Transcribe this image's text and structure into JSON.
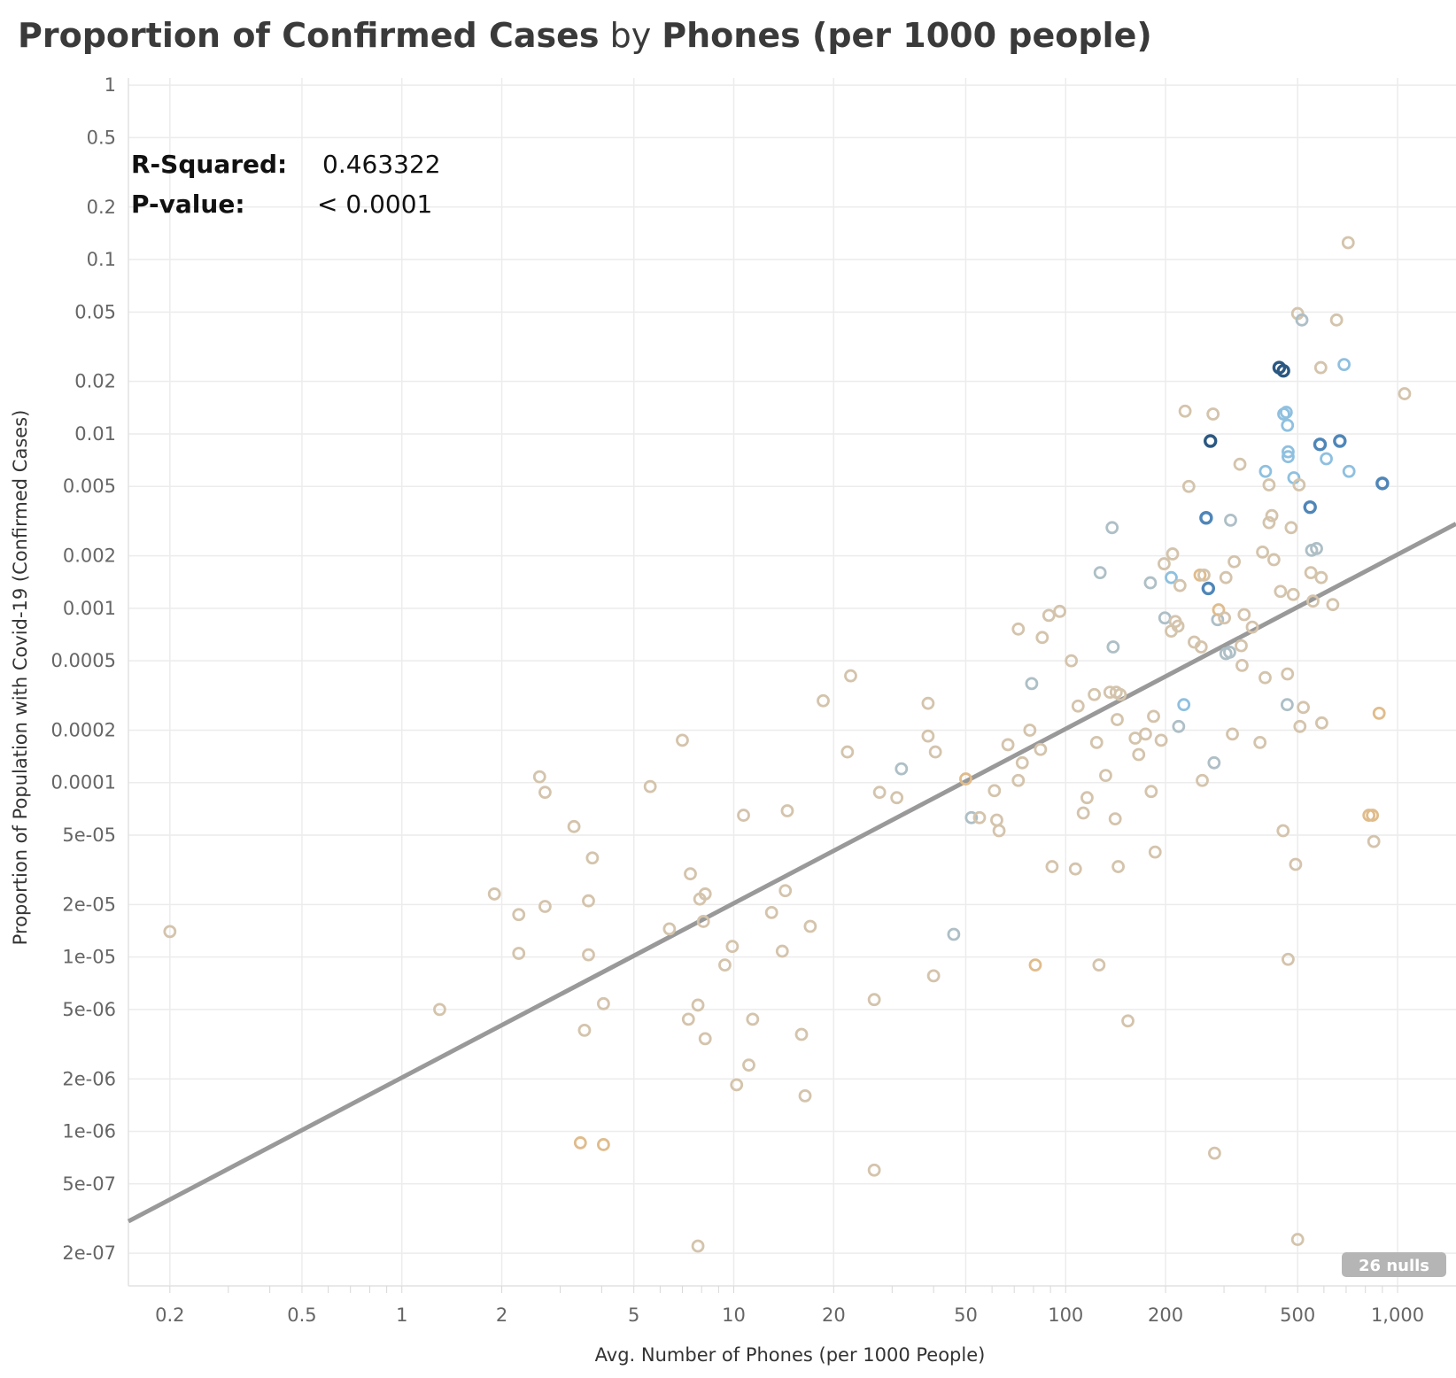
{
  "title": {
    "part1": "Proportion of Confirmed Cases",
    "part2": "by",
    "part3": "Phones (per 1000 people)"
  },
  "stats": {
    "r_squared_label": "R-Squared:",
    "r_squared_value": "0.463322",
    "p_value_label": "P-value:",
    "p_value_value": "< 0.0001"
  },
  "nulls_label": "26 nulls",
  "colors": {
    "trend": "#999999",
    "grid": "#ececec",
    "tan": "#d4c4ac",
    "orange": "#e0bc8c",
    "greyblue": "#aebfc6",
    "lightblue": "#8fc0e0",
    "midblue": "#4f86b8",
    "darkblue": "#2b5882"
  },
  "chart_data": {
    "type": "scatter",
    "xlabel": "Avg. Number of Phones (per 1000 People)",
    "ylabel": "Proportion of Population with Covid-19 (Confirmed Cases)",
    "xscale": "log",
    "yscale": "log",
    "xlim": [
      0.15,
      1500
    ],
    "ylim": [
      1.3e-07,
      1.1
    ],
    "x_ticks": [
      {
        "v": 0.2,
        "label": "0.2"
      },
      {
        "v": 0.5,
        "label": "0.5"
      },
      {
        "v": 1,
        "label": "1"
      },
      {
        "v": 2,
        "label": "2"
      },
      {
        "v": 5,
        "label": "5"
      },
      {
        "v": 10,
        "label": "10"
      },
      {
        "v": 20,
        "label": "20"
      },
      {
        "v": 50,
        "label": "50"
      },
      {
        "v": 100,
        "label": "100"
      },
      {
        "v": 200,
        "label": "200"
      },
      {
        "v": 500,
        "label": "500"
      },
      {
        "v": 1000,
        "label": "1,000"
      }
    ],
    "y_ticks": [
      {
        "v": 1,
        "label": "1"
      },
      {
        "v": 0.5,
        "label": "0.5"
      },
      {
        "v": 0.2,
        "label": "0.2"
      },
      {
        "v": 0.1,
        "label": "0.1"
      },
      {
        "v": 0.05,
        "label": "0.05"
      },
      {
        "v": 0.02,
        "label": "0.02"
      },
      {
        "v": 0.01,
        "label": "0.01"
      },
      {
        "v": 0.005,
        "label": "0.005"
      },
      {
        "v": 0.002,
        "label": "0.002"
      },
      {
        "v": 0.001,
        "label": "0.001"
      },
      {
        "v": 0.0005,
        "label": "0.0005"
      },
      {
        "v": 0.0002,
        "label": "0.0002"
      },
      {
        "v": 0.0001,
        "label": "0.0001"
      },
      {
        "v": 5e-05,
        "label": "5e-05"
      },
      {
        "v": 2e-05,
        "label": "2e-05"
      },
      {
        "v": 1e-05,
        "label": "1e-05"
      },
      {
        "v": 5e-06,
        "label": "5e-06"
      },
      {
        "v": 2e-06,
        "label": "2e-06"
      },
      {
        "v": 1e-06,
        "label": "1e-06"
      },
      {
        "v": 5e-07,
        "label": "5e-07"
      },
      {
        "v": 2e-07,
        "label": "2e-07"
      }
    ],
    "grid": true,
    "trend_line": {
      "x": [
        0.15,
        1500
      ],
      "y": [
        3.05e-07,
        0.00305
      ]
    },
    "points": [
      {
        "x": 0.2,
        "y": 1.4e-05,
        "c": "tan"
      },
      {
        "x": 1.3,
        "y": 5e-06,
        "c": "tan"
      },
      {
        "x": 1.9,
        "y": 2.3e-05,
        "c": "tan"
      },
      {
        "x": 2.25,
        "y": 1.75e-05,
        "c": "tan"
      },
      {
        "x": 2.25,
        "y": 1.05e-05,
        "c": "tan"
      },
      {
        "x": 2.6,
        "y": 0.000108,
        "c": "tan"
      },
      {
        "x": 2.7,
        "y": 8.8e-05,
        "c": "tan"
      },
      {
        "x": 2.7,
        "y": 1.95e-05,
        "c": "tan"
      },
      {
        "x": 3.3,
        "y": 5.6e-05,
        "c": "tan"
      },
      {
        "x": 3.45,
        "y": 8.6e-07,
        "c": "orange"
      },
      {
        "x": 3.55,
        "y": 3.8e-06,
        "c": "tan"
      },
      {
        "x": 3.65,
        "y": 2.1e-05,
        "c": "tan"
      },
      {
        "x": 3.65,
        "y": 1.03e-05,
        "c": "tan"
      },
      {
        "x": 3.75,
        "y": 3.7e-05,
        "c": "tan"
      },
      {
        "x": 4.05,
        "y": 5.4e-06,
        "c": "tan"
      },
      {
        "x": 4.05,
        "y": 8.4e-07,
        "c": "orange"
      },
      {
        "x": 5.6,
        "y": 9.5e-05,
        "c": "tan"
      },
      {
        "x": 6.4,
        "y": 1.45e-05,
        "c": "tan"
      },
      {
        "x": 7.0,
        "y": 0.000175,
        "c": "tan"
      },
      {
        "x": 7.3,
        "y": 4.4e-06,
        "c": "tan"
      },
      {
        "x": 7.4,
        "y": 3e-05,
        "c": "tan"
      },
      {
        "x": 7.8,
        "y": 5.3e-06,
        "c": "tan"
      },
      {
        "x": 7.8,
        "y": 2.2e-07,
        "c": "tan"
      },
      {
        "x": 7.9,
        "y": 2.15e-05,
        "c": "tan"
      },
      {
        "x": 8.1,
        "y": 1.6e-05,
        "c": "tan"
      },
      {
        "x": 8.2,
        "y": 2.3e-05,
        "c": "tan"
      },
      {
        "x": 8.2,
        "y": 3.4e-06,
        "c": "tan"
      },
      {
        "x": 9.4,
        "y": 9e-06,
        "c": "tan"
      },
      {
        "x": 9.9,
        "y": 1.15e-05,
        "c": "tan"
      },
      {
        "x": 10.2,
        "y": 1.85e-06,
        "c": "tan"
      },
      {
        "x": 10.7,
        "y": 6.5e-05,
        "c": "tan"
      },
      {
        "x": 11.1,
        "y": 2.4e-06,
        "c": "tan"
      },
      {
        "x": 11.4,
        "y": 4.4e-06,
        "c": "tan"
      },
      {
        "x": 13.0,
        "y": 1.8e-05,
        "c": "tan"
      },
      {
        "x": 14.0,
        "y": 1.08e-05,
        "c": "tan"
      },
      {
        "x": 14.3,
        "y": 2.4e-05,
        "c": "tan"
      },
      {
        "x": 14.5,
        "y": 6.9e-05,
        "c": "tan"
      },
      {
        "x": 16.0,
        "y": 3.6e-06,
        "c": "tan"
      },
      {
        "x": 16.4,
        "y": 1.6e-06,
        "c": "tan"
      },
      {
        "x": 17.0,
        "y": 1.5e-05,
        "c": "tan"
      },
      {
        "x": 18.6,
        "y": 0.000295,
        "c": "tan"
      },
      {
        "x": 22.0,
        "y": 0.00015,
        "c": "tan"
      },
      {
        "x": 22.5,
        "y": 0.00041,
        "c": "tan"
      },
      {
        "x": 26.5,
        "y": 5.7e-06,
        "c": "tan"
      },
      {
        "x": 26.5,
        "y": 6e-07,
        "c": "tan"
      },
      {
        "x": 27.5,
        "y": 8.8e-05,
        "c": "tan"
      },
      {
        "x": 31,
        "y": 8.2e-05,
        "c": "tan"
      },
      {
        "x": 32,
        "y": 0.00012,
        "c": "greyblue"
      },
      {
        "x": 38.5,
        "y": 0.000285,
        "c": "tan"
      },
      {
        "x": 38.5,
        "y": 0.000185,
        "c": "tan"
      },
      {
        "x": 40,
        "y": 7.8e-06,
        "c": "tan"
      },
      {
        "x": 40.5,
        "y": 0.00015,
        "c": "tan"
      },
      {
        "x": 46,
        "y": 1.35e-05,
        "c": "greyblue"
      },
      {
        "x": 50,
        "y": 0.000105,
        "c": "orange"
      },
      {
        "x": 52,
        "y": 6.3e-05,
        "c": "greyblue"
      },
      {
        "x": 55,
        "y": 6.3e-05,
        "c": "tan"
      },
      {
        "x": 61,
        "y": 9e-05,
        "c": "tan"
      },
      {
        "x": 62,
        "y": 6.1e-05,
        "c": "tan"
      },
      {
        "x": 63,
        "y": 5.3e-05,
        "c": "tan"
      },
      {
        "x": 67,
        "y": 0.000165,
        "c": "tan"
      },
      {
        "x": 72,
        "y": 0.00076,
        "c": "tan"
      },
      {
        "x": 72,
        "y": 0.000103,
        "c": "tan"
      },
      {
        "x": 74,
        "y": 0.00013,
        "c": "tan"
      },
      {
        "x": 78,
        "y": 0.0002,
        "c": "tan"
      },
      {
        "x": 79,
        "y": 0.00037,
        "c": "greyblue"
      },
      {
        "x": 81,
        "y": 9e-06,
        "c": "orange"
      },
      {
        "x": 84,
        "y": 0.000155,
        "c": "tan"
      },
      {
        "x": 85,
        "y": 0.00068,
        "c": "tan"
      },
      {
        "x": 89,
        "y": 0.00091,
        "c": "tan"
      },
      {
        "x": 91,
        "y": 3.3e-05,
        "c": "tan"
      },
      {
        "x": 96,
        "y": 0.00096,
        "c": "tan"
      },
      {
        "x": 104,
        "y": 0.0005,
        "c": "tan"
      },
      {
        "x": 107,
        "y": 3.2e-05,
        "c": "tan"
      },
      {
        "x": 109,
        "y": 0.000275,
        "c": "tan"
      },
      {
        "x": 113,
        "y": 6.7e-05,
        "c": "tan"
      },
      {
        "x": 116,
        "y": 8.2e-05,
        "c": "tan"
      },
      {
        "x": 122,
        "y": 0.00032,
        "c": "tan"
      },
      {
        "x": 124,
        "y": 0.00017,
        "c": "tan"
      },
      {
        "x": 126,
        "y": 9e-06,
        "c": "tan"
      },
      {
        "x": 127,
        "y": 0.0016,
        "c": "greyblue"
      },
      {
        "x": 132,
        "y": 0.00011,
        "c": "tan"
      },
      {
        "x": 136,
        "y": 0.00033,
        "c": "tan"
      },
      {
        "x": 138,
        "y": 0.0029,
        "c": "greyblue"
      },
      {
        "x": 139,
        "y": 0.0006,
        "c": "greyblue"
      },
      {
        "x": 141,
        "y": 6.2e-05,
        "c": "tan"
      },
      {
        "x": 142,
        "y": 0.00033,
        "c": "tan"
      },
      {
        "x": 144,
        "y": 3.3e-05,
        "c": "tan"
      },
      {
        "x": 146,
        "y": 0.00032,
        "c": "tan"
      },
      {
        "x": 143,
        "y": 0.00023,
        "c": "tan"
      },
      {
        "x": 154,
        "y": 4.3e-06,
        "c": "tan"
      },
      {
        "x": 162,
        "y": 0.00018,
        "c": "tan"
      },
      {
        "x": 166,
        "y": 0.000145,
        "c": "tan"
      },
      {
        "x": 174,
        "y": 0.00019,
        "c": "tan"
      },
      {
        "x": 180,
        "y": 0.0014,
        "c": "greyblue"
      },
      {
        "x": 181,
        "y": 8.9e-05,
        "c": "tan"
      },
      {
        "x": 184,
        "y": 0.00024,
        "c": "tan"
      },
      {
        "x": 186,
        "y": 4e-05,
        "c": "tan"
      },
      {
        "x": 194,
        "y": 0.000175,
        "c": "tan"
      },
      {
        "x": 198,
        "y": 0.0018,
        "c": "tan"
      },
      {
        "x": 199,
        "y": 0.00088,
        "c": "greyblue"
      },
      {
        "x": 208,
        "y": 0.0015,
        "c": "lightblue"
      },
      {
        "x": 208,
        "y": 0.00074,
        "c": "tan"
      },
      {
        "x": 210,
        "y": 0.00205,
        "c": "tan"
      },
      {
        "x": 214,
        "y": 0.00084,
        "c": "tan"
      },
      {
        "x": 218,
        "y": 0.00079,
        "c": "tan"
      },
      {
        "x": 219,
        "y": 0.00021,
        "c": "greyblue"
      },
      {
        "x": 221,
        "y": 0.00135,
        "c": "tan"
      },
      {
        "x": 227,
        "y": 0.00028,
        "c": "lightblue"
      },
      {
        "x": 229,
        "y": 0.0135,
        "c": "tan"
      },
      {
        "x": 235,
        "y": 0.005,
        "c": "tan"
      },
      {
        "x": 244,
        "y": 0.00064,
        "c": "tan"
      },
      {
        "x": 254,
        "y": 0.00155,
        "c": "orange"
      },
      {
        "x": 256,
        "y": 0.0006,
        "c": "tan"
      },
      {
        "x": 258,
        "y": 0.000103,
        "c": "tan"
      },
      {
        "x": 261,
        "y": 0.00155,
        "c": "tan"
      },
      {
        "x": 265,
        "y": 0.0033,
        "c": "midblue"
      },
      {
        "x": 269,
        "y": 0.0013,
        "c": "midblue"
      },
      {
        "x": 273,
        "y": 0.0091,
        "c": "darkblue"
      },
      {
        "x": 278,
        "y": 0.013,
        "c": "tan"
      },
      {
        "x": 280,
        "y": 0.00013,
        "c": "greyblue"
      },
      {
        "x": 281,
        "y": 7.5e-07,
        "c": "tan"
      },
      {
        "x": 287,
        "y": 0.00086,
        "c": "greyblue"
      },
      {
        "x": 289,
        "y": 0.00098,
        "c": "orange"
      },
      {
        "x": 301,
        "y": 0.00088,
        "c": "tan"
      },
      {
        "x": 304,
        "y": 0.0015,
        "c": "tan"
      },
      {
        "x": 304,
        "y": 0.00055,
        "c": "greyblue"
      },
      {
        "x": 312,
        "y": 0.00056,
        "c": "greyblue"
      },
      {
        "x": 314,
        "y": 0.0032,
        "c": "greyblue"
      },
      {
        "x": 318,
        "y": 0.00019,
        "c": "tan"
      },
      {
        "x": 322,
        "y": 0.00185,
        "c": "tan"
      },
      {
        "x": 335,
        "y": 0.0067,
        "c": "tan"
      },
      {
        "x": 338,
        "y": 0.00061,
        "c": "tan"
      },
      {
        "x": 340,
        "y": 0.00047,
        "c": "tan"
      },
      {
        "x": 345,
        "y": 0.00092,
        "c": "tan"
      },
      {
        "x": 365,
        "y": 0.00078,
        "c": "tan"
      },
      {
        "x": 385,
        "y": 0.00017,
        "c": "tan"
      },
      {
        "x": 392,
        "y": 0.0021,
        "c": "tan"
      },
      {
        "x": 399,
        "y": 0.0004,
        "c": "tan"
      },
      {
        "x": 400,
        "y": 0.0061,
        "c": "lightblue"
      },
      {
        "x": 410,
        "y": 0.0031,
        "c": "tan"
      },
      {
        "x": 410,
        "y": 0.0051,
        "c": "tan"
      },
      {
        "x": 418,
        "y": 0.0034,
        "c": "tan"
      },
      {
        "x": 424,
        "y": 0.0019,
        "c": "tan"
      },
      {
        "x": 440,
        "y": 0.024,
        "c": "darkblue"
      },
      {
        "x": 444,
        "y": 0.00125,
        "c": "tan"
      },
      {
        "x": 452,
        "y": 5.3e-05,
        "c": "tan"
      },
      {
        "x": 453,
        "y": 0.023,
        "c": "darkblue"
      },
      {
        "x": 454,
        "y": 0.013,
        "c": "lightblue"
      },
      {
        "x": 462,
        "y": 0.0133,
        "c": "lightblue"
      },
      {
        "x": 465,
        "y": 0.00028,
        "c": "greyblue"
      },
      {
        "x": 466,
        "y": 0.0112,
        "c": "lightblue"
      },
      {
        "x": 466,
        "y": 0.00042,
        "c": "tan"
      },
      {
        "x": 468,
        "y": 0.0079,
        "c": "lightblue"
      },
      {
        "x": 468,
        "y": 0.0074,
        "c": "lightblue"
      },
      {
        "x": 468,
        "y": 9.7e-06,
        "c": "tan"
      },
      {
        "x": 478,
        "y": 0.0029,
        "c": "tan"
      },
      {
        "x": 485,
        "y": 0.0012,
        "c": "tan"
      },
      {
        "x": 487,
        "y": 0.0056,
        "c": "lightblue"
      },
      {
        "x": 493,
        "y": 3.4e-05,
        "c": "tan"
      },
      {
        "x": 500,
        "y": 0.049,
        "c": "tan"
      },
      {
        "x": 500,
        "y": 2.4e-07,
        "c": "tan"
      },
      {
        "x": 505,
        "y": 0.0051,
        "c": "tan"
      },
      {
        "x": 508,
        "y": 0.00021,
        "c": "tan"
      },
      {
        "x": 515,
        "y": 0.045,
        "c": "greyblue"
      },
      {
        "x": 520,
        "y": 0.00027,
        "c": "tan"
      },
      {
        "x": 545,
        "y": 0.0038,
        "c": "midblue"
      },
      {
        "x": 548,
        "y": 0.0016,
        "c": "tan"
      },
      {
        "x": 551,
        "y": 0.00215,
        "c": "greyblue"
      },
      {
        "x": 556,
        "y": 0.0011,
        "c": "tan"
      },
      {
        "x": 570,
        "y": 0.0022,
        "c": "greyblue"
      },
      {
        "x": 584,
        "y": 0.0087,
        "c": "midblue"
      },
      {
        "x": 587,
        "y": 0.024,
        "c": "tan"
      },
      {
        "x": 589,
        "y": 0.0015,
        "c": "tan"
      },
      {
        "x": 591,
        "y": 0.00022,
        "c": "tan"
      },
      {
        "x": 610,
        "y": 0.0072,
        "c": "lightblue"
      },
      {
        "x": 638,
        "y": 0.00105,
        "c": "tan"
      },
      {
        "x": 655,
        "y": 0.045,
        "c": "tan"
      },
      {
        "x": 670,
        "y": 0.0091,
        "c": "midblue"
      },
      {
        "x": 690,
        "y": 0.025,
        "c": "lightblue"
      },
      {
        "x": 710,
        "y": 0.125,
        "c": "tan"
      },
      {
        "x": 714,
        "y": 0.0061,
        "c": "lightblue"
      },
      {
        "x": 820,
        "y": 6.5e-05,
        "c": "orange"
      },
      {
        "x": 840,
        "y": 6.5e-05,
        "c": "orange"
      },
      {
        "x": 848,
        "y": 4.6e-05,
        "c": "tan"
      },
      {
        "x": 880,
        "y": 0.00025,
        "c": "orange"
      },
      {
        "x": 900,
        "y": 0.0052,
        "c": "midblue"
      },
      {
        "x": 1050,
        "y": 0.017,
        "c": "tan"
      }
    ]
  }
}
